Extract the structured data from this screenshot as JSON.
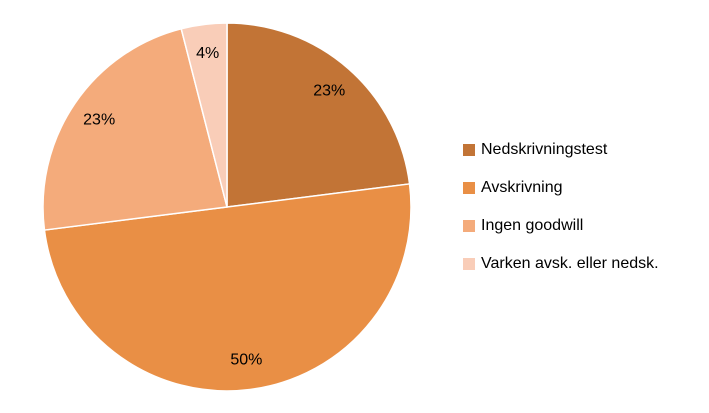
{
  "chart_data": {
    "type": "pie",
    "categories": [
      "Nedskrivningstest",
      "Avskrivning",
      "Ingen goodwill",
      "Varken avsk. eller nedsk."
    ],
    "values": [
      23,
      50,
      23,
      4
    ],
    "value_labels": [
      "23%",
      "50%",
      "23%",
      "4%"
    ],
    "colors": [
      "#c27436",
      "#e98f45",
      "#f4ab7b",
      "#f9cdb8"
    ],
    "legend": "right"
  }
}
